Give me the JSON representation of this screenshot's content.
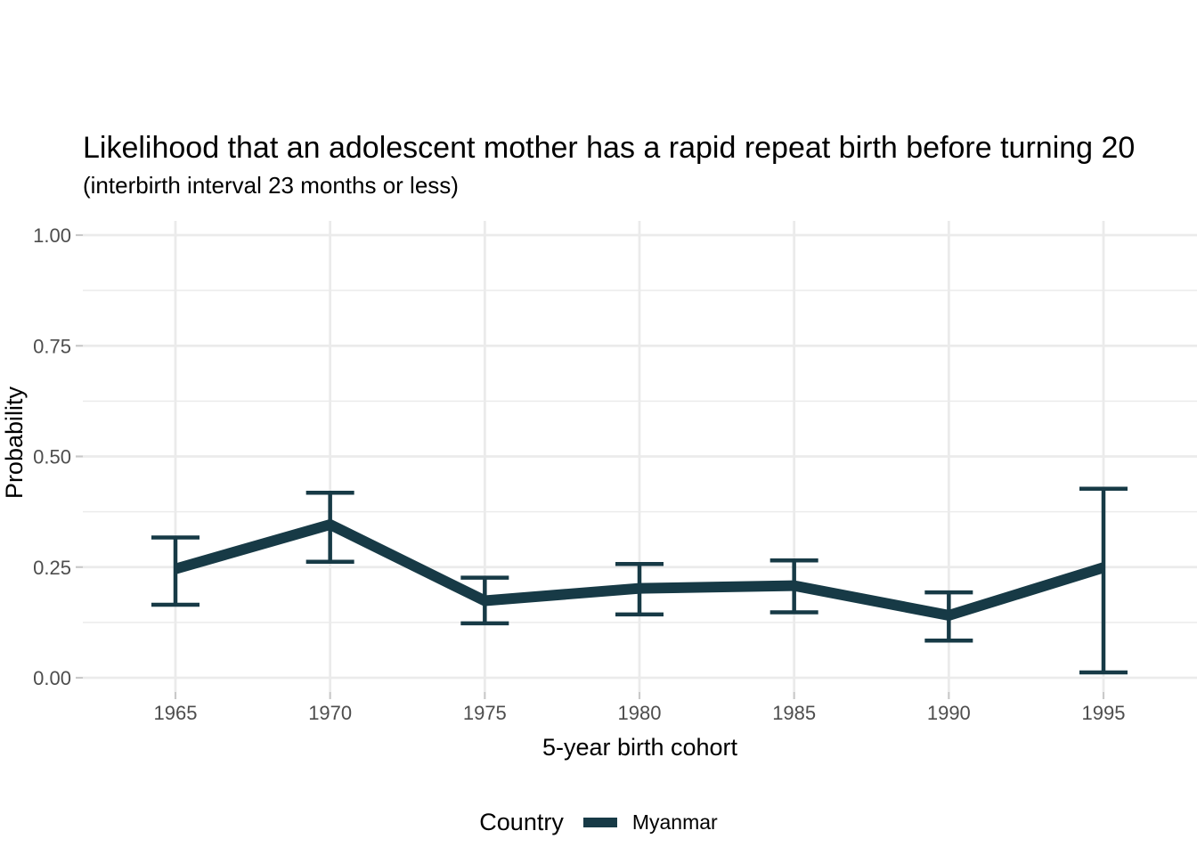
{
  "chart_data": {
    "type": "line",
    "title": "Likelihood that an adolescent mother has a rapid repeat birth before turning 20",
    "subtitle": "(interbirth interval 23 months or less)",
    "xlabel": "5-year birth cohort",
    "ylabel": "Probability",
    "legend_title": "Country",
    "xticks": [
      1965,
      1970,
      1975,
      1980,
      1985,
      1990,
      1995
    ],
    "yticks": [
      "0.00",
      "0.25",
      "0.50",
      "0.75",
      "1.00"
    ],
    "ytick_values": [
      0,
      0.25,
      0.5,
      0.75,
      1.0
    ],
    "y_minor_breaks": [
      0.125,
      0.375,
      0.625,
      0.875
    ],
    "ylim": [
      0,
      1
    ],
    "xlim": [
      1962,
      1998
    ],
    "grid": "on",
    "legend_position": "bottom",
    "error_bars": "95% confidence interval (estimated from figure)",
    "colors": {
      "grid": "#EBEBEB",
      "tick": "#C9C9C9",
      "tick_label": "#4D4D4D",
      "text": "#000000",
      "background": "#FFFFFF"
    },
    "series": [
      {
        "name": "Myanmar",
        "color": "#173A46",
        "points": [
          {
            "cohort": 1965,
            "p": 0.246,
            "lo": 0.165,
            "hi": 0.317
          },
          {
            "cohort": 1970,
            "p": 0.346,
            "lo": 0.262,
            "hi": 0.418
          },
          {
            "cohort": 1975,
            "p": 0.174,
            "lo": 0.123,
            "hi": 0.226
          },
          {
            "cohort": 1980,
            "p": 0.202,
            "lo": 0.143,
            "hi": 0.257
          },
          {
            "cohort": 1985,
            "p": 0.208,
            "lo": 0.148,
            "hi": 0.265
          },
          {
            "cohort": 1990,
            "p": 0.141,
            "lo": 0.084,
            "hi": 0.193
          },
          {
            "cohort": 1995,
            "p": 0.249,
            "lo": 0.012,
            "hi": 0.427
          }
        ]
      }
    ]
  }
}
